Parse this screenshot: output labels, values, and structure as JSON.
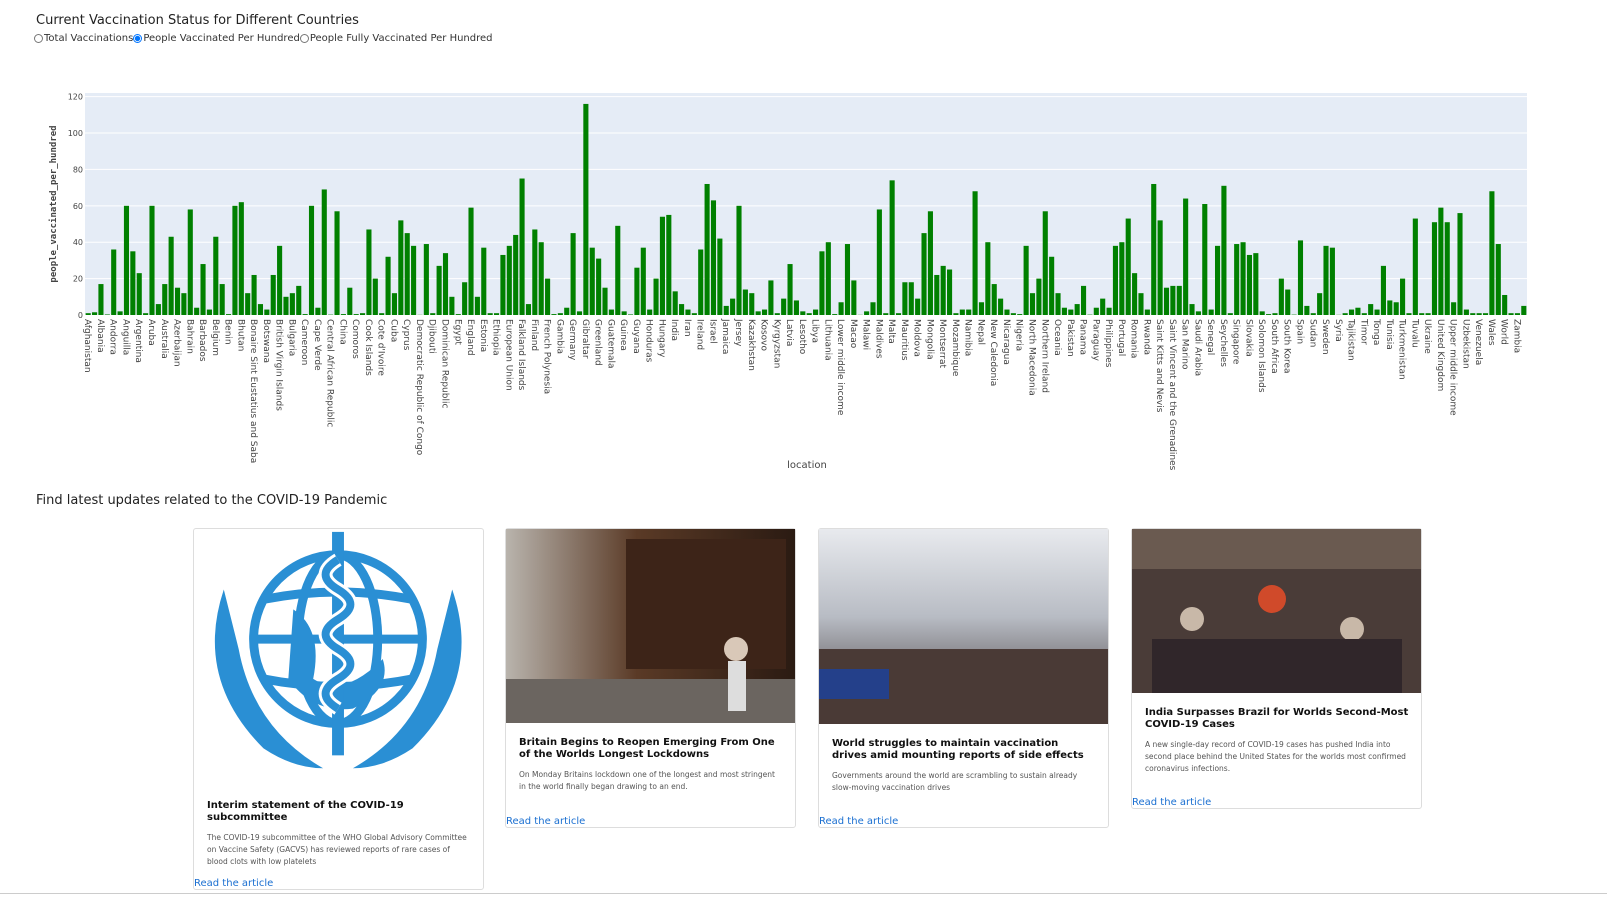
{
  "header": {
    "title": "Current Vaccination Status for Different Countries",
    "options": [
      "Total Vaccinations",
      "People Vaccinated Per Hundred",
      "People Fully Vaccinated Per Hundred"
    ],
    "checked": 1
  },
  "chart_data": {
    "type": "bar",
    "x_label": "location",
    "y_label": "people_vaccinated_per_hundred",
    "color": "#008000",
    "ylim": [
      0,
      122
    ],
    "yticks": [
      0,
      20,
      40,
      60,
      80,
      100,
      120
    ],
    "grid": true,
    "categories": [
      "Afghanistan",
      null,
      "Albania",
      null,
      "Andorra",
      null,
      "Anguilla",
      null,
      "Argentina",
      null,
      "Aruba",
      null,
      "Australia",
      null,
      "Azerbaijan",
      null,
      "Bahrain",
      null,
      "Barbados",
      null,
      "Belgium",
      null,
      "Benin",
      null,
      "Bhutan",
      null,
      "Bonaire Sint Eustatius and Saba",
      null,
      "Botswana",
      null,
      "British Virgin Islands",
      null,
      "Bulgaria",
      null,
      "Cameroon",
      null,
      "Cape Verde",
      null,
      "Central African Republic",
      null,
      "China",
      null,
      "Comoros",
      null,
      "Cook Islands",
      null,
      "Cote d'Ivoire",
      null,
      "Cuba",
      null,
      "Cyprus",
      null,
      "Democratic Republic of Congo",
      null,
      "Djibouti",
      null,
      "Dominican Republic",
      null,
      "Egypt",
      null,
      "England",
      null,
      "Estonia",
      null,
      "Ethiopia",
      null,
      "European Union",
      null,
      "Falkland Islands",
      null,
      "Finland",
      null,
      "French Polynesia",
      null,
      "Gambia",
      null,
      "Germany",
      null,
      "Gibraltar",
      null,
      "Greenland",
      null,
      "Guatemala",
      null,
      "Guinea",
      null,
      "Guyana",
      null,
      "Honduras",
      null,
      "Hungary",
      null,
      "India",
      null,
      "Iran",
      null,
      "Ireland",
      null,
      "Israel",
      null,
      "Jamaica",
      null,
      "Jersey",
      null,
      "Kazakhstan",
      null,
      "Kosovo",
      null,
      "Kyrgyzstan",
      null,
      "Latvia",
      null,
      "Lesotho",
      null,
      "Libya",
      null,
      "Lithuania",
      null,
      "Lower middle income",
      null,
      "Macao",
      null,
      "Malawi",
      null,
      "Maldives",
      null,
      "Malta",
      null,
      "Mauritius",
      null,
      "Moldova",
      null,
      "Mongolia",
      null,
      "Montserrat",
      null,
      "Mozambique",
      null,
      "Namibia",
      null,
      "Nepal",
      null,
      "New Caledonia",
      null,
      "Nicaragua",
      null,
      "Nigeria",
      null,
      "North Macedonia",
      null,
      "Northern Ireland",
      null,
      "Oceania",
      null,
      "Pakistan",
      null,
      "Panama",
      null,
      "Paraguay",
      null,
      "Philippines",
      null,
      "Portugal",
      null,
      "Romania",
      null,
      "Rwanda",
      null,
      "Saint Kitts and Nevis",
      null,
      "Saint Vincent and the Grenadines",
      null,
      "San Marino",
      null,
      "Saudi Arabia",
      null,
      "Senegal",
      null,
      "Seychelles",
      null,
      "Singapore",
      null,
      "Slovakia",
      null,
      "Solomon Islands",
      null,
      "South Africa",
      null,
      "South Korea",
      null,
      "Spain",
      null,
      "Sudan",
      null,
      "Sweden",
      null,
      "Syria",
      null,
      "Tajikistan",
      null,
      "Timor",
      null,
      "Tonga",
      null,
      "Tunisia",
      null,
      "Turkmenistan",
      null,
      "Tuvalu",
      null,
      "Ukraine",
      null,
      "United Kingdom",
      null,
      "Upper middle income",
      null,
      "Uzbekistan",
      null,
      "Venezuela",
      null,
      "Wales",
      null,
      "World",
      null,
      "Zambia",
      null
    ],
    "values": [
      1,
      1.5,
      17,
      0.3,
      36,
      2,
      60,
      35,
      23,
      1,
      60,
      6,
      17,
      43,
      15,
      12,
      58,
      4,
      28,
      3,
      43,
      17,
      0.5,
      60,
      62,
      12,
      22,
      6,
      3,
      22,
      38,
      10,
      12,
      16,
      0.5,
      60,
      4,
      69,
      0.2,
      57,
      0.5,
      15,
      0.5,
      1,
      47,
      20,
      1,
      32,
      12,
      52,
      45,
      38,
      0.1,
      39,
      1,
      27,
      34,
      10,
      0.5,
      18,
      59,
      10,
      37,
      1,
      1,
      33,
      38,
      44,
      75,
      6,
      47,
      40,
      20,
      0.5,
      1,
      4,
      45,
      2,
      116,
      37,
      31,
      15,
      3,
      49,
      2,
      0.3,
      26,
      37,
      3,
      20,
      54,
      55,
      13,
      6,
      3,
      1,
      36,
      72,
      63,
      42,
      5,
      9,
      60,
      14,
      12,
      2,
      3,
      19,
      1,
      9,
      28,
      8,
      2,
      1,
      3,
      35,
      40,
      0.5,
      7,
      39,
      19,
      0.1,
      2,
      7,
      58,
      1,
      74,
      1,
      18,
      18,
      9,
      45,
      57,
      22,
      27,
      25,
      1,
      3,
      3,
      68,
      7,
      40,
      17,
      9,
      3,
      1,
      0.5,
      38,
      12,
      20,
      57,
      32,
      12,
      4,
      3,
      6,
      16,
      0.2,
      4,
      9,
      4,
      38,
      40,
      53,
      23,
      12,
      3,
      72,
      52,
      15,
      16,
      16,
      64,
      6,
      2,
      61,
      3,
      38,
      71,
      1,
      39,
      40,
      33,
      34,
      2,
      0.5,
      1,
      20,
      14,
      0.2,
      41,
      5,
      1,
      12,
      38,
      37,
      0.1,
      1,
      3,
      4,
      1,
      6,
      3,
      27,
      8,
      7,
      20,
      1,
      53,
      1,
      1,
      51,
      59,
      51,
      7,
      56,
      3,
      1,
      1,
      1,
      68,
      39,
      11,
      1,
      1,
      5
    ]
  },
  "news": {
    "title": "Find latest updates related to the COVID-19 Pandemic",
    "cards": [
      {
        "title": "Interim statement of the COVID-19 subcommittee",
        "description": "The COVID-19 subcommittee of the WHO Global Advisory Committee on Vaccine Safety (GACVS) has reviewed reports of rare cases of blood clots with low platelets",
        "link": "Read the article"
      },
      {
        "title": "Britain Begins to Reopen Emerging From One of the Worlds Longest Lockdowns",
        "description": "On Monday Britains lockdown one of the longest and most stringent in the world finally began drawing to an end.",
        "link": "Read the article"
      },
      {
        "title": "World struggles to maintain vaccination drives amid mounting reports of side effects",
        "description": "Governments around the world are scrambling to sustain already slow-moving vaccination drives",
        "link": "Read the article"
      },
      {
        "title": "India Surpasses Brazil for Worlds Second-Most COVID-19 Cases",
        "description": "A new single-day record of COVID-19 cases has pushed India into second place behind the United States for the worlds most confirmed coronavirus infections.",
        "link": "Read the article"
      }
    ]
  }
}
